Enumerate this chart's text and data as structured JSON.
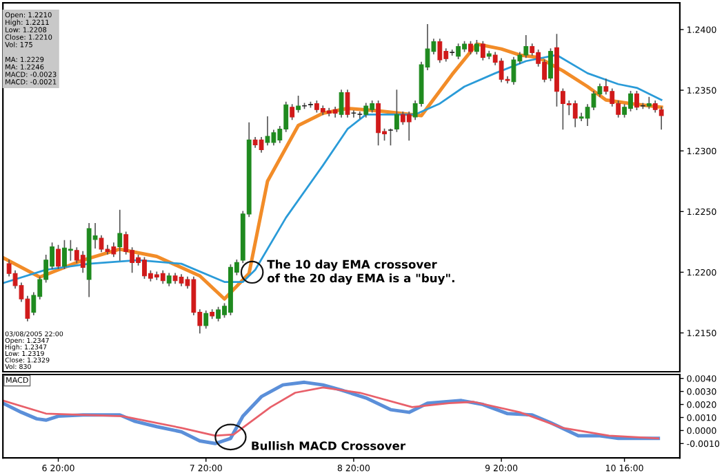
{
  "chart_data": [
    {
      "type": "candlestick",
      "tick_labels": "y",
      "xlim": [
        "2005-03-06T11:00",
        "2005-03-11T01:00"
      ],
      "ylim": [
        1.2118,
        1.2422
      ],
      "yticks": [
        {
          "value": 1.215,
          "label": "1.2150"
        },
        {
          "value": 1.22,
          "label": "1.2200"
        },
        {
          "value": 1.225,
          "label": "1.2250"
        },
        {
          "value": 1.23,
          "label": "1.2300"
        },
        {
          "value": 1.235,
          "label": "1.2350"
        },
        {
          "value": 1.24,
          "label": "1.2400"
        }
      ],
      "x": [
        "2005-03-06T12:00",
        "2005-03-06T13:00",
        "2005-03-06T14:00",
        "2005-03-06T15:00",
        "2005-03-06T16:00",
        "2005-03-06T17:00",
        "2005-03-06T18:00",
        "2005-03-06T19:00",
        "2005-03-06T20:00",
        "2005-03-06T21:00",
        "2005-03-06T22:00",
        "2005-03-06T23:00",
        "2005-03-07T00:00",
        "2005-03-07T01:00",
        "2005-03-07T02:00",
        "2005-03-07T03:00",
        "2005-03-07T04:00",
        "2005-03-07T05:00",
        "2005-03-07T06:00",
        "2005-03-07T07:00",
        "2005-03-07T08:00",
        "2005-03-07T09:00",
        "2005-03-07T10:00",
        "2005-03-07T11:00",
        "2005-03-07T12:00",
        "2005-03-07T13:00",
        "2005-03-07T14:00",
        "2005-03-07T15:00",
        "2005-03-07T16:00",
        "2005-03-07T17:00",
        "2005-03-07T18:00",
        "2005-03-07T19:00",
        "2005-03-07T20:00",
        "2005-03-07T21:00",
        "2005-03-07T22:00",
        "2005-03-07T23:00",
        "2005-03-08T00:00",
        "2005-03-08T01:00",
        "2005-03-08T02:00",
        "2005-03-08T03:00",
        "2005-03-08T04:00",
        "2005-03-08T05:00",
        "2005-03-08T06:00",
        "2005-03-08T07:00",
        "2005-03-08T08:00",
        "2005-03-08T09:00",
        "2005-03-08T10:00",
        "2005-03-08T11:00",
        "2005-03-08T12:00",
        "2005-03-08T13:00",
        "2005-03-08T14:00",
        "2005-03-08T15:00",
        "2005-03-08T16:00",
        "2005-03-08T17:00",
        "2005-03-08T18:00",
        "2005-03-08T19:00",
        "2005-03-08T20:00",
        "2005-03-08T21:00",
        "2005-03-08T22:00",
        "2005-03-08T23:00",
        "2005-03-09T00:00",
        "2005-03-09T01:00",
        "2005-03-09T02:00",
        "2005-03-09T03:00",
        "2005-03-09T04:00",
        "2005-03-09T05:00",
        "2005-03-09T06:00",
        "2005-03-09T07:00",
        "2005-03-09T08:00",
        "2005-03-09T09:00",
        "2005-03-09T10:00",
        "2005-03-09T11:00",
        "2005-03-09T12:00",
        "2005-03-09T13:00",
        "2005-03-09T14:00",
        "2005-03-09T15:00",
        "2005-03-09T16:00",
        "2005-03-09T17:00",
        "2005-03-09T18:00",
        "2005-03-09T19:00",
        "2005-03-09T20:00",
        "2005-03-09T21:00",
        "2005-03-09T22:00",
        "2005-03-09T23:00",
        "2005-03-10T00:00",
        "2005-03-10T01:00",
        "2005-03-10T02:00",
        "2005-03-10T03:00",
        "2005-03-10T04:00",
        "2005-03-10T05:00",
        "2005-03-10T06:00",
        "2005-03-10T07:00",
        "2005-03-10T08:00",
        "2005-03-10T09:00",
        "2005-03-10T10:00",
        "2005-03-10T11:00",
        "2005-03-10T12:00",
        "2005-03-10T13:00",
        "2005-03-10T14:00",
        "2005-03-10T15:00",
        "2005-03-10T16:00",
        "2005-03-10T17:00",
        "2005-03-10T18:00",
        "2005-03-10T19:00",
        "2005-03-10T20:00",
        "2005-03-10T21:00",
        "2005-03-10T22:00"
      ],
      "ohlc": [
        [
          1.2207,
          1.221,
          1.2197,
          1.2199
        ],
        [
          1.2199,
          1.2201,
          1.2187,
          1.2189
        ],
        [
          1.2189,
          1.2191,
          1.2176,
          1.2178
        ],
        [
          1.2178,
          1.218,
          1.216,
          1.2162
        ],
        [
          1.2167,
          1.2183,
          1.2165,
          1.2181
        ],
        [
          1.218,
          1.2196,
          1.2178,
          1.2194
        ],
        [
          1.2194,
          1.2214,
          1.2192,
          1.221
        ],
        [
          1.2205,
          1.2224,
          1.2203,
          1.2221
        ],
        [
          1.2219,
          1.2222,
          1.2203,
          1.2205
        ],
        [
          1.2205,
          1.2226,
          1.2203,
          1.222
        ],
        [
          1.2218,
          1.2226,
          1.221,
          1.2219
        ],
        [
          1.2218,
          1.222,
          1.2208,
          1.221
        ],
        [
          1.2214,
          1.2217,
          1.22,
          1.2204
        ],
        [
          1.2194,
          1.224,
          1.218,
          1.2236
        ],
        [
          1.2227,
          1.224,
          1.222,
          1.223
        ],
        [
          1.2228,
          1.223,
          1.2217,
          1.2219
        ],
        [
          1.2219,
          1.2222,
          1.2215,
          1.2217
        ],
        [
          1.2221,
          1.2224,
          1.2213,
          1.2215
        ],
        [
          1.2221,
          1.2251,
          1.221,
          1.2232
        ],
        [
          1.2231,
          1.2233,
          1.2215,
          1.2217
        ],
        [
          1.2218,
          1.222,
          1.22,
          1.2208
        ],
        [
          1.2212,
          1.2214,
          1.2206,
          1.2208
        ],
        [
          1.221,
          1.2212,
          1.2195,
          1.2197
        ],
        [
          1.2199,
          1.2201,
          1.2193,
          1.2195
        ],
        [
          1.2198,
          1.22,
          1.2194,
          1.2196
        ],
        [
          1.2199,
          1.2201,
          1.2191,
          1.2193
        ],
        [
          1.2191,
          1.2199,
          1.2189,
          1.2197
        ],
        [
          1.2197,
          1.2199,
          1.2191,
          1.2193
        ],
        [
          1.2196,
          1.2198,
          1.2189,
          1.2191
        ],
        [
          1.2194,
          1.2196,
          1.2187,
          1.2189
        ],
        [
          1.2194,
          1.2196,
          1.2165,
          1.2167
        ],
        [
          1.2167,
          1.2169,
          1.215,
          1.2156
        ],
        [
          1.2156,
          1.2168,
          1.2154,
          1.2166
        ],
        [
          1.2167,
          1.2169,
          1.2162,
          1.2164
        ],
        [
          1.2162,
          1.2171,
          1.216,
          1.2169
        ],
        [
          1.2165,
          1.2174,
          1.2163,
          1.2172
        ],
        [
          1.2167,
          1.2206,
          1.2165,
          1.2204
        ],
        [
          1.22,
          1.221,
          1.2198,
          1.2208
        ],
        [
          1.221,
          1.225,
          1.2208,
          1.2248
        ],
        [
          1.2248,
          1.2323,
          1.2246,
          1.2309
        ],
        [
          1.2309,
          1.2311,
          1.2303,
          1.2305
        ],
        [
          1.2309,
          1.2311,
          1.2299,
          1.2301
        ],
        [
          1.2307,
          1.2328,
          1.2305,
          1.2312
        ],
        [
          1.2307,
          1.2317,
          1.2305,
          1.2315
        ],
        [
          1.2309,
          1.232,
          1.2307,
          1.2318
        ],
        [
          1.2318,
          1.234,
          1.2316,
          1.2338
        ],
        [
          1.2336,
          1.2338,
          1.2326,
          1.2328
        ],
        [
          1.2334,
          1.2345,
          1.2332,
          1.2337
        ],
        [
          1.2337,
          1.2339,
          1.2335,
          1.2337
        ],
        [
          1.2338,
          1.234,
          1.2336,
          1.2338
        ],
        [
          1.2339,
          1.2341,
          1.2332,
          1.2334
        ],
        [
          1.2335,
          1.2337,
          1.233,
          1.2332
        ],
        [
          1.2333,
          1.2335,
          1.2329,
          1.2331
        ],
        [
          1.2334,
          1.2336,
          1.2328,
          1.2331
        ],
        [
          1.233,
          1.235,
          1.2328,
          1.2348
        ],
        [
          1.2348,
          1.235,
          1.2328,
          1.233
        ],
        [
          1.2331,
          1.2333,
          1.2328,
          1.2331
        ],
        [
          1.233,
          1.2332,
          1.2327,
          1.233
        ],
        [
          1.233,
          1.2339,
          1.2328,
          1.2337
        ],
        [
          1.2334,
          1.2341,
          1.2332,
          1.2339
        ],
        [
          1.2339,
          1.2341,
          1.2305,
          1.2315
        ],
        [
          1.2316,
          1.2318,
          1.2309,
          1.2314
        ],
        [
          1.2317,
          1.2318,
          1.2305,
          1.2317
        ],
        [
          1.2318,
          1.235,
          1.2316,
          1.233
        ],
        [
          1.233,
          1.2332,
          1.2322,
          1.2324
        ],
        [
          1.233,
          1.2332,
          1.2309,
          1.2324
        ],
        [
          1.2328,
          1.2341,
          1.2326,
          1.2339
        ],
        [
          1.2339,
          1.2373,
          1.2337,
          1.2371
        ],
        [
          1.2369,
          1.2404,
          1.2367,
          1.2384
        ],
        [
          1.2382,
          1.2392,
          1.238,
          1.239
        ],
        [
          1.239,
          1.2392,
          1.2373,
          1.2375
        ],
        [
          1.2382,
          1.2384,
          1.2374,
          1.2376
        ],
        [
          1.2381,
          1.2383,
          1.2379,
          1.2381
        ],
        [
          1.2378,
          1.2388,
          1.2376,
          1.2386
        ],
        [
          1.2384,
          1.239,
          1.2382,
          1.2388
        ],
        [
          1.2388,
          1.239,
          1.238,
          1.2382
        ],
        [
          1.2382,
          1.2391,
          1.238,
          1.2388
        ],
        [
          1.2388,
          1.239,
          1.2375,
          1.2377
        ],
        [
          1.2378,
          1.2382,
          1.2376,
          1.238
        ],
        [
          1.2379,
          1.2381,
          1.2371,
          1.2373
        ],
        [
          1.2374,
          1.2376,
          1.2357,
          1.2359
        ],
        [
          1.2359,
          1.2361,
          1.2356,
          1.2358
        ],
        [
          1.2357,
          1.2377,
          1.2355,
          1.2375
        ],
        [
          1.2374,
          1.2381,
          1.2372,
          1.2379
        ],
        [
          1.2379,
          1.2395,
          1.2377,
          1.2386
        ],
        [
          1.2386,
          1.2388,
          1.2379,
          1.2381
        ],
        [
          1.2381,
          1.2383,
          1.237,
          1.2372
        ],
        [
          1.2373,
          1.2375,
          1.2357,
          1.2359
        ],
        [
          1.236,
          1.2384,
          1.2358,
          1.2382
        ],
        [
          1.2385,
          1.2396,
          1.2337,
          1.2349
        ],
        [
          1.2349,
          1.2351,
          1.2318,
          1.2339
        ],
        [
          1.2339,
          1.2341,
          1.233,
          1.2338
        ],
        [
          1.2339,
          1.2341,
          1.232,
          1.2327
        ],
        [
          1.2327,
          1.2331,
          1.2325,
          1.2328
        ],
        [
          1.2327,
          1.2338,
          1.2321,
          1.2336
        ],
        [
          1.2336,
          1.2349,
          1.2334,
          1.2347
        ],
        [
          1.2347,
          1.2355,
          1.2345,
          1.2353
        ],
        [
          1.2353,
          1.2359,
          1.2347,
          1.2349
        ],
        [
          1.2349,
          1.2351,
          1.2337,
          1.2339
        ],
        [
          1.2339,
          1.2341,
          1.2328,
          1.233
        ],
        [
          1.233,
          1.2338,
          1.2328,
          1.2336
        ],
        [
          1.2335,
          1.2349,
          1.2333,
          1.2347
        ],
        [
          1.2347,
          1.2349,
          1.2334,
          1.2336
        ],
        [
          1.2337,
          1.2339,
          1.2335,
          1.2337
        ],
        [
          1.2337,
          1.2344,
          1.2335,
          1.2339
        ],
        [
          1.2339,
          1.2341,
          1.2332,
          1.2334
        ],
        [
          1.2334,
          1.2336,
          1.2318,
          1.2329
        ]
      ],
      "colors": [
        "#d01a1a",
        "#d01a1a",
        "#d01a1a",
        "#d01a1a",
        "#1f8a1f",
        "#1f8a1f",
        "#1f8a1f",
        "#1f8a1f",
        "#d01a1a",
        "#1f8a1f",
        "#1f8a1f",
        "#d01a1a",
        "#d01a1a",
        "#1f8a1f",
        "#1f8a1f",
        "#d01a1a",
        "#d01a1a",
        "#d01a1a",
        "#1f8a1f",
        "#d01a1a",
        "#d01a1a",
        "#d01a1a",
        "#d01a1a",
        "#d01a1a",
        "#d01a1a",
        "#d01a1a",
        "#1f8a1f",
        "#d01a1a",
        "#d01a1a",
        "#d01a1a",
        "#d01a1a",
        "#d01a1a",
        "#1f8a1f",
        "#d01a1a",
        "#1f8a1f",
        "#1f8a1f",
        "#1f8a1f",
        "#1f8a1f",
        "#1f8a1f",
        "#1f8a1f",
        "#d01a1a",
        "#d01a1a",
        "#1f8a1f",
        "#1f8a1f",
        "#1f8a1f",
        "#1f8a1f",
        "#d01a1a",
        "#1f8a1f",
        "#222222",
        "#222222",
        "#d01a1a",
        "#d01a1a",
        "#d01a1a",
        "#d01a1a",
        "#1f8a1f",
        "#d01a1a",
        "#222222",
        "#222222",
        "#1f8a1f",
        "#1f8a1f",
        "#d01a1a",
        "#d01a1a",
        "#222222",
        "#1f8a1f",
        "#d01a1a",
        "#d01a1a",
        "#1f8a1f",
        "#1f8a1f",
        "#1f8a1f",
        "#1f8a1f",
        "#d01a1a",
        "#d01a1a",
        "#222222",
        "#1f8a1f",
        "#1f8a1f",
        "#d01a1a",
        "#1f8a1f",
        "#d01a1a",
        "#1f8a1f",
        "#d01a1a",
        "#d01a1a",
        "#d01a1a",
        "#1f8a1f",
        "#1f8a1f",
        "#1f8a1f",
        "#d01a1a",
        "#d01a1a",
        "#d01a1a",
        "#1f8a1f",
        "#d01a1a",
        "#d01a1a",
        "#d01a1a",
        "#d01a1a",
        "#1f8a1f",
        "#1f8a1f",
        "#1f8a1f",
        "#1f8a1f",
        "#d01a1a",
        "#d01a1a",
        "#d01a1a",
        "#1f8a1f",
        "#1f8a1f",
        "#d01a1a",
        "#222222",
        "#1f8a1f",
        "#d01a1a",
        "#d01a1a"
      ],
      "series": [
        {
          "type": "line",
          "color": "#f28c28",
          "x": [
            "2005-03-06T11:00",
            "2005-03-06T17:00",
            "2005-03-07T00:00",
            "2005-03-07T06:00",
            "2005-03-07T12:00",
            "2005-03-07T19:00",
            "2005-03-07T23:00",
            "2005-03-08T03:00",
            "2005-03-08T06:00",
            "2005-03-08T11:00",
            "2005-03-08T15:00",
            "2005-03-08T19:00",
            "2005-03-09T00:00",
            "2005-03-09T07:00",
            "2005-03-09T12:00",
            "2005-03-09T16:00",
            "2005-03-09T20:00",
            "2005-03-09T23:00",
            "2005-03-10T02:00",
            "2005-03-10T06:00",
            "2005-03-10T10:00",
            "2005-03-10T13:00",
            "2005-03-10T17:00",
            "2005-03-10T22:00"
          ],
          "values": [
            1.2212,
            1.2196,
            1.221,
            1.2219,
            1.2213,
            1.2197,
            1.2178,
            1.2199,
            1.2275,
            1.2321,
            1.2331,
            1.2335,
            1.2333,
            1.2329,
            1.2363,
            1.2388,
            1.2384,
            1.2379,
            1.2377,
            1.2366,
            1.2353,
            1.2342,
            1.2339,
            1.2336
          ]
        },
        {
          "type": "line",
          "color": "#2a9bd8",
          "x": [
            "2005-03-06T11:00",
            "2005-03-06T18:00",
            "2005-03-07T01:00",
            "2005-03-07T09:00",
            "2005-03-07T16:00",
            "2005-03-07T23:00",
            "2005-03-08T02:00",
            "2005-03-08T04:00",
            "2005-03-08T09:00",
            "2005-03-08T15:00",
            "2005-03-08T19:00",
            "2005-03-08T22:00",
            "2005-03-09T06:00",
            "2005-03-09T10:00",
            "2005-03-09T14:00",
            "2005-03-09T19:00",
            "2005-03-10T00:00",
            "2005-03-10T05:00",
            "2005-03-10T10:00",
            "2005-03-10T15:00",
            "2005-03-10T18:00",
            "2005-03-10T22:00"
          ],
          "values": [
            1.2191,
            1.2202,
            1.2207,
            1.221,
            1.2207,
            1.2192,
            1.2192,
            1.2202,
            1.2245,
            1.2288,
            1.2318,
            1.233,
            1.233,
            1.2339,
            1.2353,
            1.2364,
            1.2374,
            1.2379,
            1.2364,
            1.2355,
            1.2352,
            1.2342
          ]
        }
      ],
      "annotations": [
        {
          "text": "The 10 day EMA crossover\nof the 20 day EMA is a \"buy\".",
          "x": "2005-03-08T03:30",
          "y": 1.22
        },
        "Open: 1.2210\nHigh: 1.2211\nLow: 1.2208\nClose: 1.2210\nVol: 175\n\nMA: 1.2229\nMA: 1.2246\nMACD: -0.0023\nMACD: -0.0021",
        "03/08/2005 22:00\nOpen: 1.2347\nHigh: 1.2347\nLow: 1.2319\nClose: 1.2329\nVol: 830"
      ]
    },
    {
      "type": "line",
      "title": "MACD",
      "xlim": [
        "2005-03-06T11:00",
        "2005-03-11T01:00"
      ],
      "ylim": [
        -0.0021,
        0.0043
      ],
      "yticks": [
        {
          "value": -0.001,
          "label": "-0.0010"
        },
        {
          "value": 0,
          "label": "0.0000"
        },
        {
          "value": 0.001,
          "label": "0.0010"
        },
        {
          "value": 0.002,
          "label": "0.0020"
        },
        {
          "value": 0.003,
          "label": "0.0030"
        },
        {
          "value": 0.004,
          "label": "0.0040"
        }
      ],
      "xticks": [
        {
          "value": "2005-03-06T20:00",
          "label": "6 20:00"
        },
        {
          "value": "2005-03-07T20:00",
          "label": "7 20:00"
        },
        {
          "value": "2005-03-08T20:00",
          "label": "8 20:00"
        },
        {
          "value": "2005-03-09T20:00",
          "label": "9 20:00"
        },
        {
          "value": "2005-03-10T16:00",
          "label": "10 16:00"
        }
      ],
      "series": [
        {
          "color": "#5b8fd9",
          "x": [
            "2005-03-06T11:00",
            "2005-03-06T14:00",
            "2005-03-06T16:30",
            "2005-03-06T18:00",
            "2005-03-06T20:00",
            "2005-03-07T00:00",
            "2005-03-07T06:00",
            "2005-03-07T08:30",
            "2005-03-07T12:00",
            "2005-03-07T16:00",
            "2005-03-07T19:00",
            "2005-03-07T21:30",
            "2005-03-08T00:00",
            "2005-03-08T02:00",
            "2005-03-08T05:00",
            "2005-03-08T08:30",
            "2005-03-08T12:00",
            "2005-03-08T15:00",
            "2005-03-08T18:00",
            "2005-03-08T22:00",
            "2005-03-09T02:00",
            "2005-03-09T05:00",
            "2005-03-09T08:00",
            "2005-03-09T13:30",
            "2005-03-09T17:00",
            "2005-03-09T21:00",
            "2005-03-10T01:00",
            "2005-03-10T04:00",
            "2005-03-10T08:30",
            "2005-03-10T12:00",
            "2005-03-10T15:00",
            "2005-03-10T21:30"
          ],
          "values": [
            0.0021,
            0.0014,
            0.0009,
            0.0008,
            0.0011,
            0.0012,
            0.0012,
            0.0007,
            0.0003,
            -0.0001,
            -0.0008,
            -0.001,
            -0.0006,
            0.0011,
            0.0026,
            0.0035,
            0.0037,
            0.0035,
            0.0031,
            0.0025,
            0.0016,
            0.0014,
            0.0021,
            0.0023,
            0.002,
            0.0013,
            0.0012,
            0.0006,
            -0.0004,
            -0.0004,
            -0.0006,
            -0.0006
          ]
        },
        {
          "color": "#e8606a",
          "x": [
            "2005-03-06T11:00",
            "2005-03-06T18:00",
            "2005-03-07T00:00",
            "2005-03-07T06:30",
            "2005-03-07T16:00",
            "2005-03-07T21:30",
            "2005-03-08T00:30",
            "2005-03-08T06:30",
            "2005-03-08T10:30",
            "2005-03-08T15:00",
            "2005-03-08T21:00",
            "2005-03-09T05:30",
            "2005-03-09T11:30",
            "2005-03-09T15:30",
            "2005-03-09T23:00",
            "2005-03-10T06:00",
            "2005-03-10T13:30",
            "2005-03-10T21:30"
          ],
          "values": [
            0.0023,
            0.0013,
            0.0012,
            0.0011,
            0.0002,
            -0.0004,
            -0.0003,
            0.0018,
            0.0029,
            0.0033,
            0.0029,
            0.0018,
            0.0021,
            0.0022,
            0.0014,
            0.0002,
            -0.0004,
            -0.0006
          ]
        }
      ],
      "annotations": [
        {
          "text": "Bullish MACD Crossover",
          "x": "2005-03-08T00:00",
          "y": -0.0005
        }
      ]
    }
  ]
}
